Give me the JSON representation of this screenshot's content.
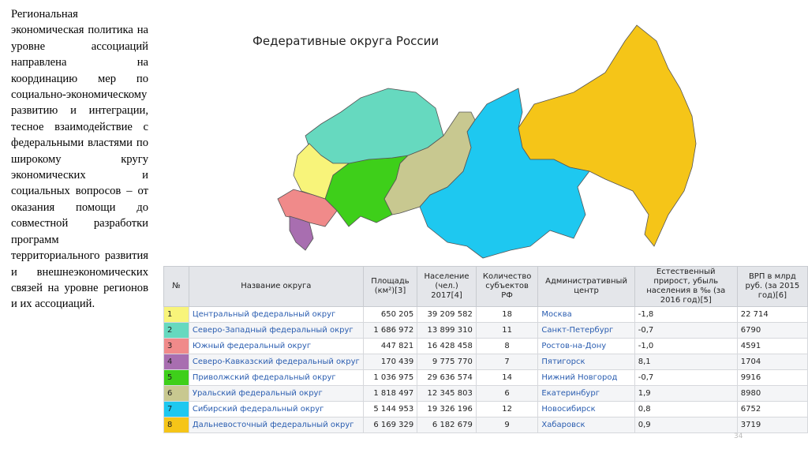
{
  "text": "Региональная экономическая политика на уровне ассоциаций направлена на координацию мер по социально-экономическому развитию и интеграции, тесное взаимодействие с федеральными властями по широкому кругу экономических и социальных вопросов – от оказания помощи до совместной разработки программ территориального развития и внешнеэкономических связей на уровне регионов и их ассоциаций.",
  "map": {
    "title": "Федеративные округа России"
  },
  "table": {
    "headers": [
      "№",
      "Название округа",
      "Площадь (км²)[3]",
      "Население (чел.) 2017[4]",
      "Количество субъектов РФ",
      "Административный центр",
      "Естественный прирост, убыль населения в ‰ (за 2016 год)[5]",
      "ВРП в млрд руб. (за 2015 год)[6]"
    ],
    "rows": [
      [
        "1",
        "Центральный федеральный округ",
        "650 205",
        "39 209 582",
        "18",
        "Москва",
        "-1,8",
        "22 714"
      ],
      [
        "2",
        "Северо-Западный федеральный округ",
        "1 686 972",
        "13 899 310",
        "11",
        "Санкт-Петербург",
        "-0,7",
        "6790"
      ],
      [
        "3",
        "Южный федеральный округ",
        "447 821",
        "16 428 458",
        "8",
        "Ростов-на-Дону",
        "-1,0",
        "4591"
      ],
      [
        "4",
        "Северо-Кавказский федеральный округ",
        "170 439",
        "9 775 770",
        "7",
        "Пятигорск",
        "8,1",
        "1704"
      ],
      [
        "5",
        "Приволжский федеральный округ",
        "1 036 975",
        "29 636 574",
        "14",
        "Нижний Новгород",
        "-0,7",
        "9916"
      ],
      [
        "6",
        "Уральский федеральный округ",
        "1 818 497",
        "12 345 803",
        "6",
        "Екатеринбург",
        "1,9",
        "8980"
      ],
      [
        "7",
        "Сибирский федеральный округ",
        "5 144 953",
        "19 326 196",
        "12",
        "Новосибирск",
        "0,8",
        "6752"
      ],
      [
        "8",
        "Дальневосточный федеральный округ",
        "6 169 329",
        "6 182 679",
        "9",
        "Хабаровск",
        "0,9",
        "3719"
      ]
    ]
  },
  "page_number": "34"
}
